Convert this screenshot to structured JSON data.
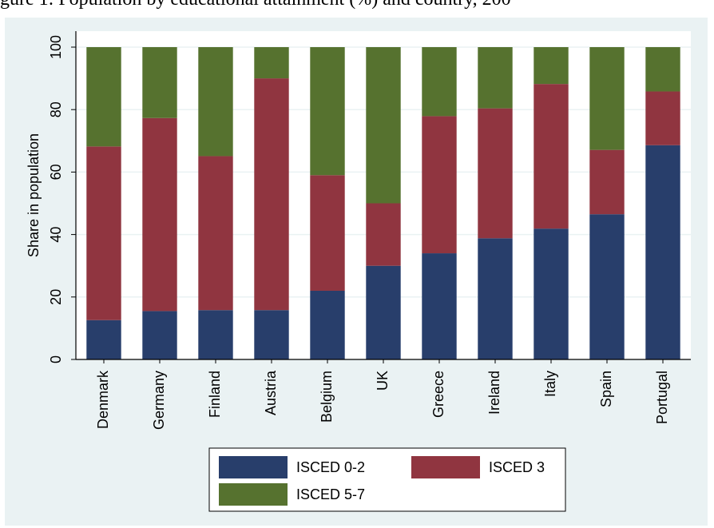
{
  "caption": "gure 1: Population by educational attainment (%) and country, 200",
  "chart_data": {
    "type": "bar",
    "stacked": true,
    "title": "",
    "xlabel": "",
    "ylabel": "Share in population",
    "ylim": [
      0,
      100
    ],
    "yticks": [
      0,
      20,
      40,
      60,
      80,
      100
    ],
    "grid": true,
    "legend_position": "bottom",
    "categories": [
      "Denmark",
      "Germany",
      "Finland",
      "Austria",
      "Belgium",
      "UK",
      "Greece",
      "Ireland",
      "Italy",
      "Spain",
      "Portugal"
    ],
    "series": [
      {
        "name": "ISCED 0-2",
        "color": "#283e6b",
        "values": [
          12.6,
          15.5,
          15.8,
          15.8,
          22.0,
          30.0,
          34.0,
          38.8,
          41.9,
          46.5,
          68.6
        ]
      },
      {
        "name": "ISCED 3",
        "color": "#903540",
        "values": [
          55.6,
          61.8,
          49.3,
          74.2,
          37.0,
          20.0,
          43.9,
          41.6,
          46.3,
          20.6,
          17.2
        ]
      },
      {
        "name": "ISCED 5-7",
        "color": "#56722f",
        "values": [
          31.8,
          22.7,
          34.9,
          10.0,
          41.0,
          50.0,
          22.1,
          19.6,
          11.8,
          32.9,
          14.2
        ]
      }
    ]
  }
}
